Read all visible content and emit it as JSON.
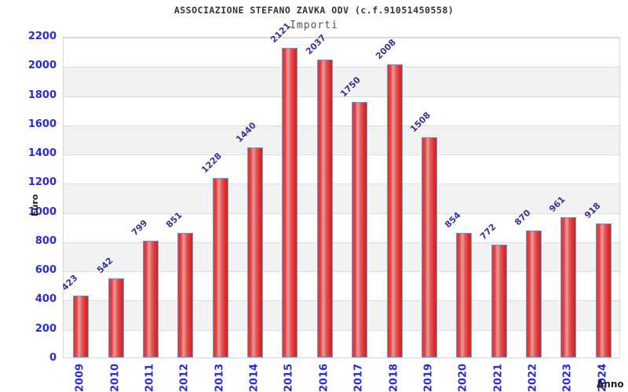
{
  "header": {
    "title": "ASSOCIAZIONE STEFANO ZAVKA ODV (c.f.91051450558)",
    "subtitle": "Importi"
  },
  "axes": {
    "y_label": "Euro",
    "x_label": "Anno"
  },
  "chart_data": {
    "type": "bar",
    "title": "ASSOCIAZIONE STEFANO ZAVKA ODV (c.f.91051450558)",
    "subtitle": "Importi",
    "xlabel": "Anno",
    "ylabel": "Euro",
    "categories": [
      "2009",
      "2010",
      "2011",
      "2012",
      "2013",
      "2014",
      "2015",
      "2016",
      "2017",
      "2018",
      "2019",
      "2020",
      "2021",
      "2022",
      "2023",
      "2024"
    ],
    "values": [
      423,
      542,
      799,
      851,
      1228,
      1440,
      2121,
      2037,
      1750,
      2008,
      1508,
      854,
      772,
      870,
      961,
      918
    ],
    "ylim": [
      0,
      2200
    ],
    "ytick_step": 200,
    "grid": true,
    "band_rows": true,
    "legend": "none",
    "value_labels_rotation_deg": -45,
    "x_labels_rotation_deg": -90
  },
  "colors": {
    "tick_text": "#2a2ad0",
    "value_label_text": "#333399",
    "bar_main": "#e02828",
    "bar_highlight": "#e89c9c",
    "bar_border": "#5ba3e0",
    "gridline": "#dcdcdc",
    "band": "#f2f2f2",
    "plot_border": "#d6d6d6",
    "title_text": "#333333",
    "subtitle_text": "#555555",
    "axis_title_text": "#1a1a1a"
  }
}
